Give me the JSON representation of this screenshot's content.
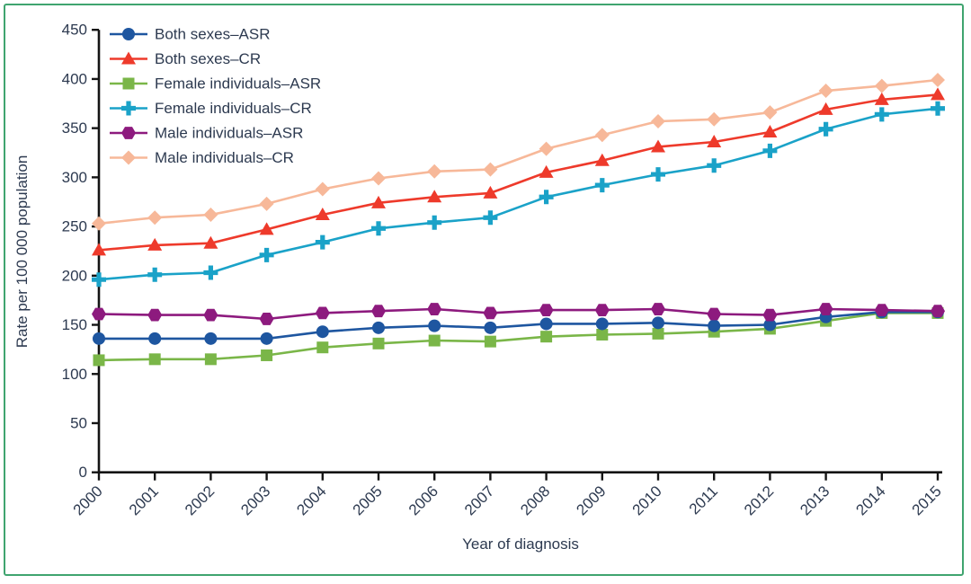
{
  "frame": {
    "border_color": "#3fa46f"
  },
  "colors": {
    "text": "#2d3a50",
    "axis": "#141414",
    "background": "#ffffff"
  },
  "chart_data": {
    "type": "line",
    "title": "",
    "xlabel": "Year of diagnosis",
    "ylabel": "Rate per 100 000 population",
    "x": [
      2000,
      2001,
      2002,
      2003,
      2004,
      2005,
      2006,
      2007,
      2008,
      2009,
      2010,
      2011,
      2012,
      2013,
      2014,
      2015
    ],
    "ylim": [
      0,
      450
    ],
    "ytick_step": 50,
    "grid": false,
    "legend_position": "top-left",
    "series": [
      {
        "key": "both_asr",
        "name": "Both sexes–ASR",
        "color": "#1e56a0",
        "marker": "circle",
        "values": [
          136,
          136,
          136,
          136,
          143,
          147,
          149,
          147,
          151,
          151,
          152,
          149,
          150,
          158,
          163,
          163
        ]
      },
      {
        "key": "both_cr",
        "name": "Both sexes–CR",
        "color": "#ee3a2b",
        "marker": "triangle",
        "values": [
          226,
          231,
          233,
          247,
          262,
          274,
          280,
          284,
          305,
          317,
          331,
          336,
          346,
          369,
          379,
          384
        ]
      },
      {
        "key": "female_asr",
        "name": "Female individuals–ASR",
        "color": "#7ab648",
        "marker": "square",
        "values": [
          114,
          115,
          115,
          119,
          127,
          131,
          134,
          133,
          138,
          140,
          141,
          143,
          146,
          154,
          162,
          162
        ]
      },
      {
        "key": "female_cr",
        "name": "Female individuals–CR",
        "color": "#1aa2c8",
        "marker": "plus",
        "values": [
          196,
          201,
          203,
          221,
          234,
          248,
          254,
          259,
          280,
          292,
          303,
          312,
          327,
          349,
          364,
          370
        ]
      },
      {
        "key": "male_asr",
        "name": "Male individuals–ASR",
        "color": "#8d1a7e",
        "marker": "hexagon",
        "values": [
          161,
          160,
          160,
          156,
          162,
          164,
          166,
          162,
          165,
          165,
          166,
          161,
          160,
          166,
          165,
          164
        ]
      },
      {
        "key": "male_cr",
        "name": "Male individuals–CR",
        "color": "#f7b899",
        "marker": "diamond",
        "values": [
          253,
          259,
          262,
          273,
          288,
          299,
          306,
          308,
          329,
          343,
          357,
          359,
          366,
          388,
          393,
          399
        ]
      }
    ],
    "draw_order": [
      "male_cr",
      "both_cr",
      "female_cr",
      "female_asr",
      "both_asr",
      "male_asr"
    ]
  }
}
